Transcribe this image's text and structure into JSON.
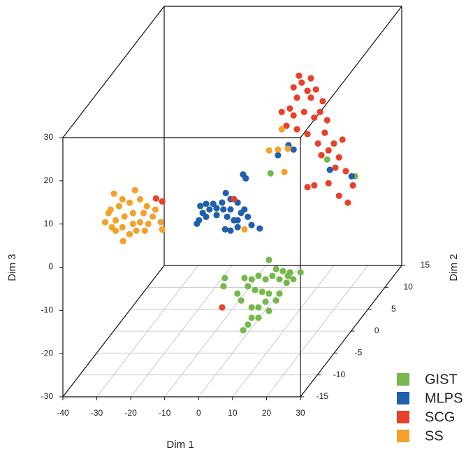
{
  "chart_data": {
    "type": "scatter3d",
    "xlabel": "Dim 1",
    "ylabel": "Dim 2",
    "zlabel": "Dim 3",
    "xlim": [
      -40,
      30
    ],
    "ylim": [
      -15,
      15
    ],
    "zlim": [
      -30,
      30
    ],
    "xticks": [
      -40,
      -30,
      -20,
      -10,
      0,
      10,
      20,
      30
    ],
    "yticks": [
      -15,
      -10,
      -5,
      0,
      5,
      10,
      15
    ],
    "zticks": [
      -30,
      -20,
      -10,
      0,
      10,
      20,
      30
    ],
    "grid": true,
    "legend": "bottom-right",
    "series": [
      {
        "name": "GIST",
        "color": "#77b84a",
        "x": [
          5.8,
          7.9,
          9.9,
          12.0,
          13.0,
          11.0,
          8.9,
          6.8,
          4.8,
          2.7,
          0.7,
          -1.4,
          -7.2,
          -7.6,
          -0.4,
          1.7,
          3.8,
          5.8,
          8.9,
          7.9,
          4.8,
          2.7,
          0.7,
          -2.4,
          -3.5,
          0.7,
          -0.4,
          2.7,
          5.8,
          -1.8,
          15.1,
          11.4,
          -3.7,
          13.0,
          21.2
        ],
        "y": [
          0,
          0,
          0,
          0,
          0,
          0,
          0,
          0,
          0,
          0,
          0,
          0,
          0,
          0,
          0,
          0,
          0,
          0,
          0,
          0,
          0,
          0,
          0,
          0,
          0,
          0,
          0,
          0,
          0,
          0,
          0,
          0,
          10,
          10,
          10
        ],
        "z": [
          -13.5,
          -15.6,
          -16.1,
          -16.4,
          -18.0,
          -18.8,
          -18.0,
          -17.2,
          -18.0,
          -17.2,
          -18.0,
          -17.7,
          -17.7,
          -19.6,
          -19.6,
          -20.5,
          -20.9,
          -21.3,
          -21.3,
          -22.9,
          -23.2,
          -24.5,
          -24.5,
          -22.9,
          -21.3,
          -26.9,
          -28.5,
          -26.9,
          -25.3,
          -29.8,
          -16.4,
          -17.2,
          -3.6,
          -0.4,
          -4.3
        ]
      },
      {
        "name": "MLPS",
        "color": "#1f5fae",
        "x": [
          -19.4,
          -17.7,
          -15.6,
          -13.0,
          -11.9,
          -10.5,
          -8.4,
          -6.4,
          -18.7,
          -16.7,
          -14.6,
          -12.6,
          -10.5,
          -7.4,
          -5.4,
          -19.8,
          -17.7,
          -14.6,
          -11.5,
          -8.4,
          -12.1,
          -10.5,
          -8.4,
          -4.3,
          -1.9,
          -6.8,
          -6.0,
          -20.4,
          -9.5,
          1.6,
          -1.5,
          3.1,
          13.8,
          20.2
        ],
        "y": [
          5,
          5,
          5,
          5,
          5,
          5,
          5,
          5,
          5,
          5,
          5,
          5,
          5,
          5,
          5,
          5,
          5,
          5,
          5,
          5,
          5,
          5,
          5,
          5,
          5,
          5,
          5,
          5,
          5,
          10,
          10,
          10,
          10,
          10
        ],
        "z": [
          -6.1,
          -5.6,
          -5.6,
          -5.3,
          -3.1,
          -4.5,
          -5.3,
          -6.9,
          -7.7,
          -6.9,
          -6.6,
          -6.9,
          -6.9,
          -7.7,
          -8.6,
          -9.4,
          -8.6,
          -8.2,
          -8.6,
          -9.4,
          -11.5,
          -11.8,
          -11.0,
          -10.5,
          -11.3,
          1.2,
          0.3,
          -10.2,
          -9.4,
          2.9,
          0.6,
          1.9,
          -2.8,
          -4.3
        ]
      },
      {
        "name": "SCG",
        "color": "#e8412a",
        "x": [
          4.7,
          5.5,
          3.1,
          7.2,
          9.7,
          8.2,
          11.7,
          4.1,
          2.0,
          -0.4,
          3.1,
          6.2,
          9.2,
          13.0,
          1.0,
          4.1,
          7.2,
          10.3,
          12.3,
          15.0,
          17.5,
          13.4,
          16.5,
          11.3,
          15.4,
          18.5,
          20.6,
          13.4,
          9.2,
          16.5,
          19.1,
          7.2,
          10.9,
          8.2,
          -22.5,
          -20.7,
          -9.5,
          -8.0
        ],
        "y": [
          10,
          10,
          10,
          10,
          10,
          10,
          10,
          10,
          10,
          10,
          10,
          10,
          10,
          10,
          10,
          10,
          10,
          10,
          10,
          10,
          10,
          10,
          10,
          10,
          10,
          10,
          10,
          10,
          10,
          10,
          10,
          10,
          10,
          10,
          -5,
          -5,
          5,
          0
        ],
        "z": [
          19.0,
          17.4,
          16.3,
          15.5,
          15.8,
          13.9,
          13.1,
          13.9,
          11.4,
          10.6,
          9.8,
          10.6,
          9.3,
          8.7,
          7.4,
          6.6,
          5.5,
          3.3,
          5.8,
          3.3,
          4.2,
          1.7,
          0.1,
          0.6,
          -2.3,
          -3.1,
          -6.4,
          -5.9,
          -6.4,
          -8.8,
          -10.4,
          -6.8,
          10.6,
          18.4,
          5.8,
          5.1,
          -4.5,
          -24.5
        ]
      },
      {
        "name": "SS",
        "color": "#f4a12c",
        "x": [
          -34.9,
          -28.7,
          -32.4,
          -35.9,
          -33.4,
          -30.3,
          -27.2,
          -25.2,
          -37.5,
          -34.4,
          -31.8,
          -29.3,
          -26.2,
          -23.5,
          -21.1,
          -35.5,
          -32.4,
          -29.3,
          -27.2,
          -24.8,
          -30.3,
          -28.3,
          -32.2,
          -36.5,
          -22.7,
          -25.8,
          -34.4,
          -20.7,
          -4.1,
          -1.5,
          1.4,
          0.4,
          -0.4,
          -6.4
        ],
        "y": [
          -5,
          -5,
          -5,
          -5,
          -5,
          -5,
          -5,
          -5,
          -5,
          -5,
          -5,
          -5,
          -5,
          -5,
          -5,
          -5,
          -5,
          -5,
          -5,
          -5,
          -5,
          -5,
          -5,
          -5,
          -5,
          -5,
          -5,
          -5,
          10,
          10,
          10,
          10,
          10,
          5
        ],
        "z": [
          6.9,
          7.7,
          5.6,
          3.2,
          4.0,
          4.8,
          5.6,
          4.0,
          0.3,
          0.7,
          1.6,
          2.4,
          2.4,
          1.6,
          0.3,
          -0.9,
          -0.9,
          -0.1,
          0.3,
          -0.1,
          -2.5,
          -1.7,
          -4.1,
          2.4,
          3.2,
          -1.7,
          -1.7,
          -1.4,
          1.7,
          1.9,
          2.1,
          -3.3,
          6.6,
          -11.5
        ]
      }
    ]
  }
}
